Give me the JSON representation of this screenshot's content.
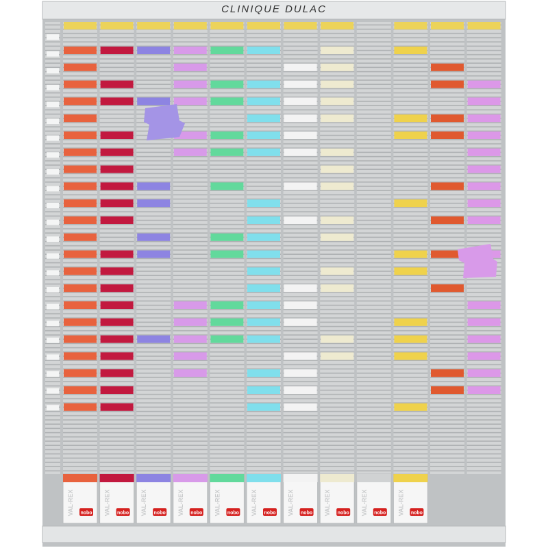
{
  "header": {
    "title": "CLINIQUE DULAC"
  },
  "boxes": [
    {
      "brand": "VAL-REX",
      "logo": "nobo"
    },
    {
      "brand": "VAL-REX",
      "logo": "nobo"
    },
    {
      "brand": "VAL-REX",
      "logo": "nobo"
    },
    {
      "brand": "VAL-REX",
      "logo": "nobo"
    },
    {
      "brand": "VAL-REX",
      "logo": "nobo"
    },
    {
      "brand": "VAL-REX",
      "logo": "nobo"
    },
    {
      "brand": "VAL-REX",
      "logo": "nobo"
    },
    {
      "brand": "VAL-REX",
      "logo": "nobo"
    },
    {
      "brand": "VAL-REX",
      "logo": "nobo"
    },
    {
      "brand": "VAL-REX",
      "logo": "nobo"
    }
  ]
}
